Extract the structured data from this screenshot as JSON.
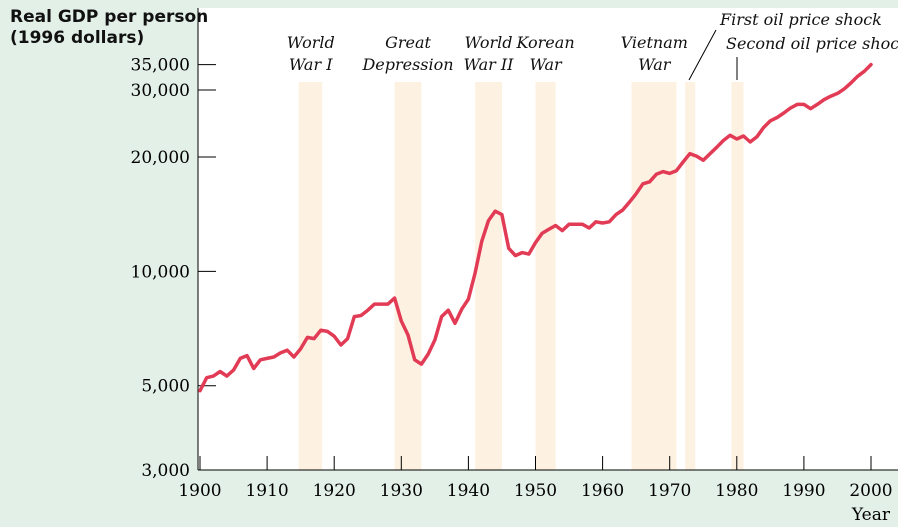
{
  "chart_data": {
    "type": "line",
    "ylabel_lines": [
      "Real GDP per person",
      "(1996 dollars)"
    ],
    "xlabel": "Year",
    "yscale": "log",
    "xlim": [
      1900,
      2000
    ],
    "ylim": [
      3000,
      40000
    ],
    "xticks": [
      1900,
      1910,
      1920,
      1930,
      1940,
      1950,
      1960,
      1970,
      1980,
      1990,
      2000
    ],
    "yticks": [
      {
        "value": 3000,
        "label": "3,000"
      },
      {
        "value": 5000,
        "label": "5,000"
      },
      {
        "value": 10000,
        "label": "10,000"
      },
      {
        "value": 20000,
        "label": "20,000"
      },
      {
        "value": 30000,
        "label": "30,000"
      },
      {
        "value": 35000,
        "label": "35,000"
      }
    ],
    "periods": [
      {
        "label_lines": [
          "World",
          "War I"
        ],
        "start": 1914.7,
        "end": 1918.2
      },
      {
        "label_lines": [
          "Great",
          "Depression"
        ],
        "start": 1929,
        "end": 1933
      },
      {
        "label_lines": [
          "World",
          "War II"
        ],
        "start": 1941,
        "end": 1945
      },
      {
        "label_lines": [
          "Korean",
          "War"
        ],
        "start": 1950,
        "end": 1953
      },
      {
        "label_lines": [
          "Vietnam",
          "War"
        ],
        "start": 1964.3,
        "end": 1971
      },
      {
        "label_lines": [
          "First oil price shock"
        ],
        "start": 1972.3,
        "end": 1973.8
      },
      {
        "label_lines": [
          "Second oil price shock"
        ],
        "start": 1979.2,
        "end": 1981
      }
    ],
    "series": [
      {
        "color": "#e23b55",
        "x": [
          1900,
          1901,
          1902,
          1903,
          1904,
          1905,
          1906,
          1907,
          1908,
          1909,
          1910,
          1911,
          1912,
          1913,
          1914,
          1915,
          1916,
          1917,
          1918,
          1919,
          1920,
          1921,
          1922,
          1923,
          1924,
          1925,
          1926,
          1927,
          1928,
          1929,
          1930,
          1931,
          1932,
          1933,
          1934,
          1935,
          1936,
          1937,
          1938,
          1939,
          1940,
          1941,
          1942,
          1943,
          1944,
          1945,
          1946,
          1947,
          1948,
          1949,
          1950,
          1951,
          1952,
          1953,
          1954,
          1955,
          1956,
          1957,
          1958,
          1959,
          1960,
          1961,
          1962,
          1963,
          1964,
          1965,
          1966,
          1967,
          1968,
          1969,
          1970,
          1971,
          1972,
          1973,
          1974,
          1975,
          1976,
          1977,
          1978,
          1979,
          1980,
          1981,
          1982,
          1983,
          1984,
          1985,
          1986,
          1987,
          1988,
          1989,
          1990,
          1991,
          1992,
          1993,
          1994,
          1995,
          1996,
          1997,
          1998,
          1999,
          2000
        ],
        "values": [
          4850,
          5250,
          5300,
          5450,
          5300,
          5500,
          5900,
          6000,
          5550,
          5850,
          5900,
          5950,
          6100,
          6200,
          5950,
          6250,
          6700,
          6650,
          7000,
          6950,
          6750,
          6400,
          6650,
          7600,
          7650,
          7900,
          8200,
          8200,
          8200,
          8500,
          7400,
          6800,
          5850,
          5700,
          6050,
          6600,
          7600,
          7900,
          7300,
          7950,
          8450,
          9900,
          12000,
          13600,
          14400,
          14100,
          11500,
          11000,
          11200,
          11100,
          11900,
          12600,
          12900,
          13200,
          12800,
          13300,
          13300,
          13300,
          13000,
          13500,
          13400,
          13500,
          14100,
          14500,
          15200,
          16000,
          17000,
          17200,
          18000,
          18300,
          18100,
          18400,
          19400,
          20400,
          20100,
          19600,
          20400,
          21200,
          22100,
          22800,
          22300,
          22700,
          21900,
          22600,
          23900,
          24900,
          25400,
          26100,
          26900,
          27500,
          27500,
          26800,
          27500,
          28300,
          28900,
          29400,
          30200,
          31300,
          32600,
          33600,
          35000
        ]
      }
    ]
  }
}
